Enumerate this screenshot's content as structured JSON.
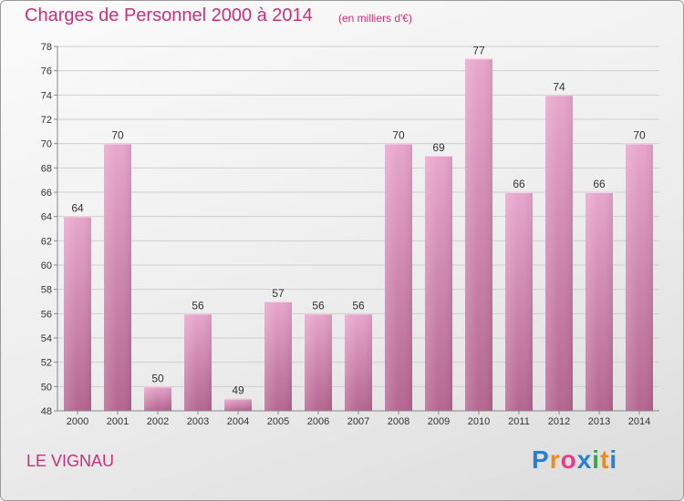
{
  "header": {
    "title": "Charges de Personnel 2000 à 2014",
    "subtitle": "(en milliers d'€)"
  },
  "footer": {
    "commune": "LE VIGNAU",
    "logo_letters": [
      "P",
      "r",
      "o",
      "x",
      "i",
      "t",
      "i"
    ],
    "logo_colors": [
      "#2a7fd0",
      "#f08a1c",
      "#e83c8c",
      "#2a7fd0",
      "#3aa64a",
      "#f08a1c",
      "#2a7fd0"
    ]
  },
  "colors": {
    "title": "#c8307c",
    "bar_top": "#e8a6cc",
    "bar_bottom": "#b46690",
    "grid": "#cfcfcf"
  },
  "chart_data": {
    "type": "bar",
    "title": "Charges de Personnel 2000 à 2014",
    "subtitle": "(en milliers d'€)",
    "categories": [
      "2000",
      "2001",
      "2002",
      "2003",
      "2004",
      "2005",
      "2006",
      "2007",
      "2008",
      "2009",
      "2010",
      "2011",
      "2012",
      "2013",
      "2014"
    ],
    "values": [
      64,
      70,
      50,
      56,
      49,
      57,
      56,
      56,
      70,
      69,
      77,
      66,
      74,
      66,
      70
    ],
    "ylim": [
      48,
      78
    ],
    "yticks": [
      48,
      50,
      52,
      54,
      56,
      58,
      60,
      62,
      64,
      66,
      68,
      70,
      72,
      74,
      76,
      78
    ],
    "grid": true,
    "legend": "none"
  }
}
